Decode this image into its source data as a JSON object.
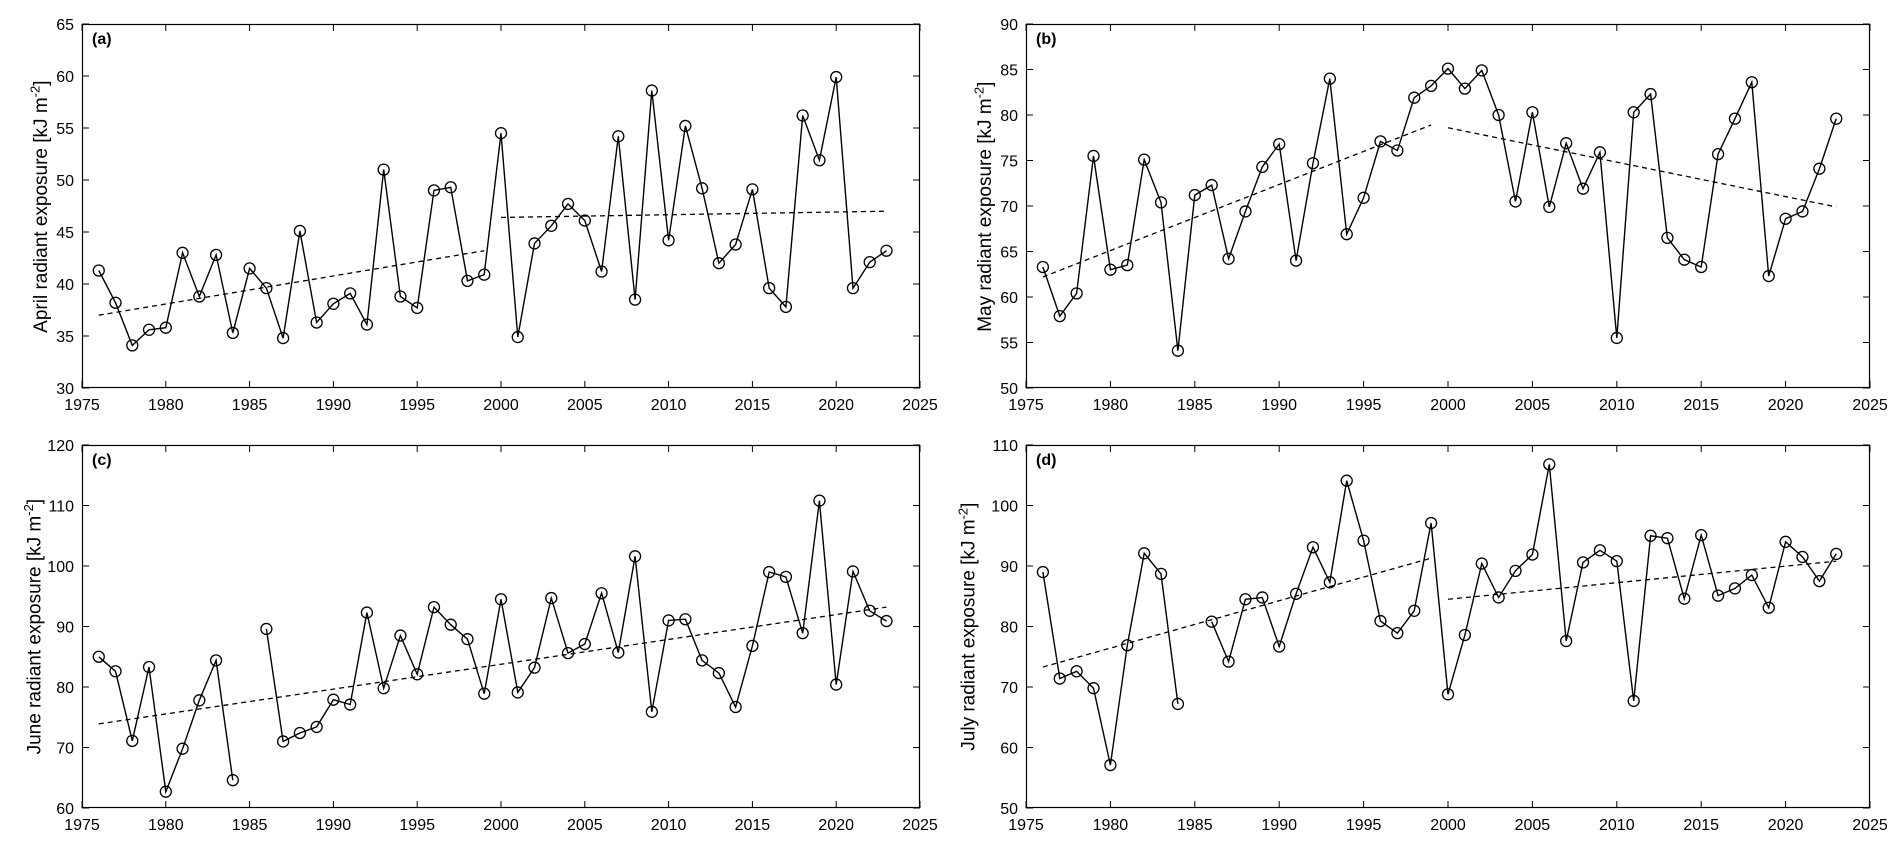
{
  "chart_data": [
    {
      "type": "line",
      "panel_label": "(a)",
      "ylabel": "April radiant exposure [kJ m",
      "ylabel_exp": "-2",
      "ylabel_end": "]",
      "xlim": [
        1975,
        2025
      ],
      "ylim": [
        30,
        65
      ],
      "xticks": [
        1975,
        1980,
        1985,
        1990,
        1995,
        2000,
        2005,
        2010,
        2015,
        2020,
        2025
      ],
      "yticks": [
        30,
        35,
        40,
        45,
        50,
        55,
        60,
        65
      ],
      "x": [
        1976,
        1977,
        1978,
        1979,
        1980,
        1981,
        1982,
        1983,
        1984,
        1985,
        1986,
        1987,
        1988,
        1989,
        1990,
        1991,
        1992,
        1993,
        1994,
        1995,
        1996,
        1997,
        1998,
        1999,
        2000,
        2001,
        2002,
        2003,
        2004,
        2005,
        2006,
        2007,
        2008,
        2009,
        2010,
        2011,
        2012,
        2013,
        2014,
        2015,
        2016,
        2017,
        2018,
        2019,
        2020,
        2021,
        2022,
        2023
      ],
      "series": [
        {
          "values": [
            41.3,
            38.2,
            34.1,
            35.6,
            35.8,
            43.0,
            38.8,
            42.8,
            35.3,
            41.5,
            39.6,
            34.8,
            45.1,
            36.3,
            38.1,
            39.1,
            36.1,
            51.0,
            38.8,
            37.7,
            49.0,
            49.3,
            40.3,
            40.9,
            54.5,
            34.9,
            43.9,
            45.6,
            47.7,
            46.1,
            41.2,
            54.2,
            38.5,
            58.6,
            44.2,
            55.2,
            49.2,
            42.0,
            43.8,
            49.1,
            39.6,
            37.8,
            56.2,
            51.9,
            59.9,
            39.6,
            42.1,
            43.2
          ]
        }
      ],
      "trends": [
        {
          "x": [
            1976,
            1999
          ],
          "y": [
            37.0,
            43.2
          ]
        },
        {
          "x": [
            2000,
            2023
          ],
          "y": [
            46.4,
            47.0
          ]
        }
      ]
    },
    {
      "type": "line",
      "panel_label": "(b)",
      "ylabel": "May radiant exposure [kJ m",
      "ylabel_exp": "-2",
      "ylabel_end": "]",
      "xlim": [
        1975,
        2025
      ],
      "ylim": [
        50,
        90
      ],
      "xticks": [
        1975,
        1980,
        1985,
        1990,
        1995,
        2000,
        2005,
        2010,
        2015,
        2020,
        2025
      ],
      "yticks": [
        50,
        55,
        60,
        65,
        70,
        75,
        80,
        85,
        90
      ],
      "x": [
        1976,
        1977,
        1978,
        1979,
        1980,
        1981,
        1982,
        1983,
        1984,
        1985,
        1986,
        1987,
        1988,
        1989,
        1990,
        1991,
        1992,
        1993,
        1994,
        1995,
        1996,
        1997,
        1998,
        1999,
        2000,
        2001,
        2002,
        2003,
        2004,
        2005,
        2006,
        2007,
        2008,
        2009,
        2010,
        2011,
        2012,
        2013,
        2014,
        2015,
        2016,
        2017,
        2018,
        2019,
        2020,
        2021,
        2022,
        2023
      ],
      "series": [
        {
          "values": [
            63.3,
            57.9,
            60.4,
            75.5,
            63.0,
            63.5,
            75.1,
            70.4,
            54.1,
            71.2,
            72.3,
            64.2,
            69.4,
            74.3,
            76.8,
            64.0,
            74.7,
            84.0,
            66.9,
            70.9,
            77.1,
            76.1,
            81.9,
            83.2,
            85.1,
            82.9,
            84.9,
            80.0,
            70.5,
            80.3,
            69.9,
            76.9,
            71.9,
            75.9,
            55.5,
            80.3,
            82.3,
            66.5,
            64.1,
            63.3,
            75.7,
            79.6,
            83.6,
            62.3,
            68.6,
            69.4,
            74.1,
            79.6
          ]
        }
      ],
      "trends": [
        {
          "x": [
            1976,
            1999
          ],
          "y": [
            62.2,
            78.9
          ]
        },
        {
          "x": [
            2000,
            2023
          ],
          "y": [
            78.6,
            69.9
          ]
        }
      ]
    },
    {
      "type": "line",
      "panel_label": "(c)",
      "ylabel": "June radiant exposure [kJ m",
      "ylabel_exp": "-2",
      "ylabel_end": "]",
      "xlim": [
        1975,
        2025
      ],
      "ylim": [
        60,
        120
      ],
      "xticks": [
        1975,
        1980,
        1985,
        1990,
        1995,
        2000,
        2005,
        2010,
        2015,
        2020,
        2025
      ],
      "yticks": [
        60,
        70,
        80,
        90,
        100,
        110,
        120
      ],
      "x": [
        1976,
        1977,
        1978,
        1979,
        1980,
        1981,
        1982,
        1983,
        1984,
        1985,
        1986,
        1987,
        1988,
        1989,
        1990,
        1991,
        1992,
        1993,
        1994,
        1995,
        1996,
        1997,
        1998,
        1999,
        2000,
        2001,
        2002,
        2003,
        2004,
        2005,
        2006,
        2007,
        2008,
        2009,
        2010,
        2011,
        2012,
        2013,
        2014,
        2015,
        2016,
        2017,
        2018,
        2019,
        2020,
        2021,
        2022,
        2023
      ],
      "series": [
        {
          "values": [
            85.0,
            82.6,
            71.1,
            83.3,
            62.7,
            69.8,
            77.8,
            84.4,
            64.6,
            null,
            89.6,
            71.0,
            72.4,
            73.4,
            77.9,
            77.1,
            92.3,
            79.8,
            88.5,
            82.1,
            93.2,
            90.3,
            87.9,
            78.9,
            94.5,
            79.1,
            83.2,
            94.7,
            85.6,
            87.1,
            95.5,
            85.7,
            101.6,
            75.9,
            91.0,
            91.2,
            84.4,
            82.3,
            76.7,
            86.8,
            99.0,
            98.2,
            88.9,
            110.8,
            80.4,
            99.1,
            92.6,
            90.9
          ]
        }
      ],
      "trends": [
        {
          "x": [
            1976,
            2023
          ],
          "y": [
            73.9,
            93.2
          ]
        }
      ]
    },
    {
      "type": "line",
      "panel_label": "(d)",
      "ylabel": "July radiant exposure [kJ m",
      "ylabel_exp": "-2",
      "ylabel_end": "]",
      "xlim": [
        1975,
        2025
      ],
      "ylim": [
        50,
        110
      ],
      "xticks": [
        1975,
        1980,
        1985,
        1990,
        1995,
        2000,
        2005,
        2010,
        2015,
        2020,
        2025
      ],
      "yticks": [
        50,
        60,
        70,
        80,
        90,
        100,
        110
      ],
      "x": [
        1976,
        1977,
        1978,
        1979,
        1980,
        1981,
        1982,
        1983,
        1984,
        1985,
        1986,
        1987,
        1988,
        1989,
        1990,
        1991,
        1992,
        1993,
        1994,
        1995,
        1996,
        1997,
        1998,
        1999,
        2000,
        2001,
        2002,
        2003,
        2004,
        2005,
        2006,
        2007,
        2008,
        2009,
        2010,
        2011,
        2012,
        2013,
        2014,
        2015,
        2016,
        2017,
        2018,
        2019,
        2020,
        2021,
        2022,
        2023
      ],
      "series": [
        {
          "values": [
            89.0,
            71.4,
            72.6,
            69.8,
            57.1,
            76.9,
            92.1,
            88.7,
            67.2,
            null,
            80.8,
            74.2,
            84.5,
            84.8,
            76.7,
            85.4,
            93.1,
            87.3,
            104.1,
            94.2,
            80.9,
            78.9,
            82.6,
            97.1,
            68.8,
            78.6,
            90.4,
            84.8,
            89.2,
            91.9,
            106.8,
            77.6,
            90.6,
            92.6,
            90.8,
            67.7,
            95.0,
            94.6,
            84.6,
            95.1,
            85.1,
            86.3,
            88.5,
            83.1,
            94.0,
            91.5,
            87.5,
            92.0
          ]
        }
      ],
      "trends": [
        {
          "x": [
            1976,
            1999
          ],
          "y": [
            73.3,
            91.3
          ]
        },
        {
          "x": [
            2000,
            2023
          ],
          "y": [
            84.5,
            90.8
          ]
        }
      ]
    }
  ]
}
